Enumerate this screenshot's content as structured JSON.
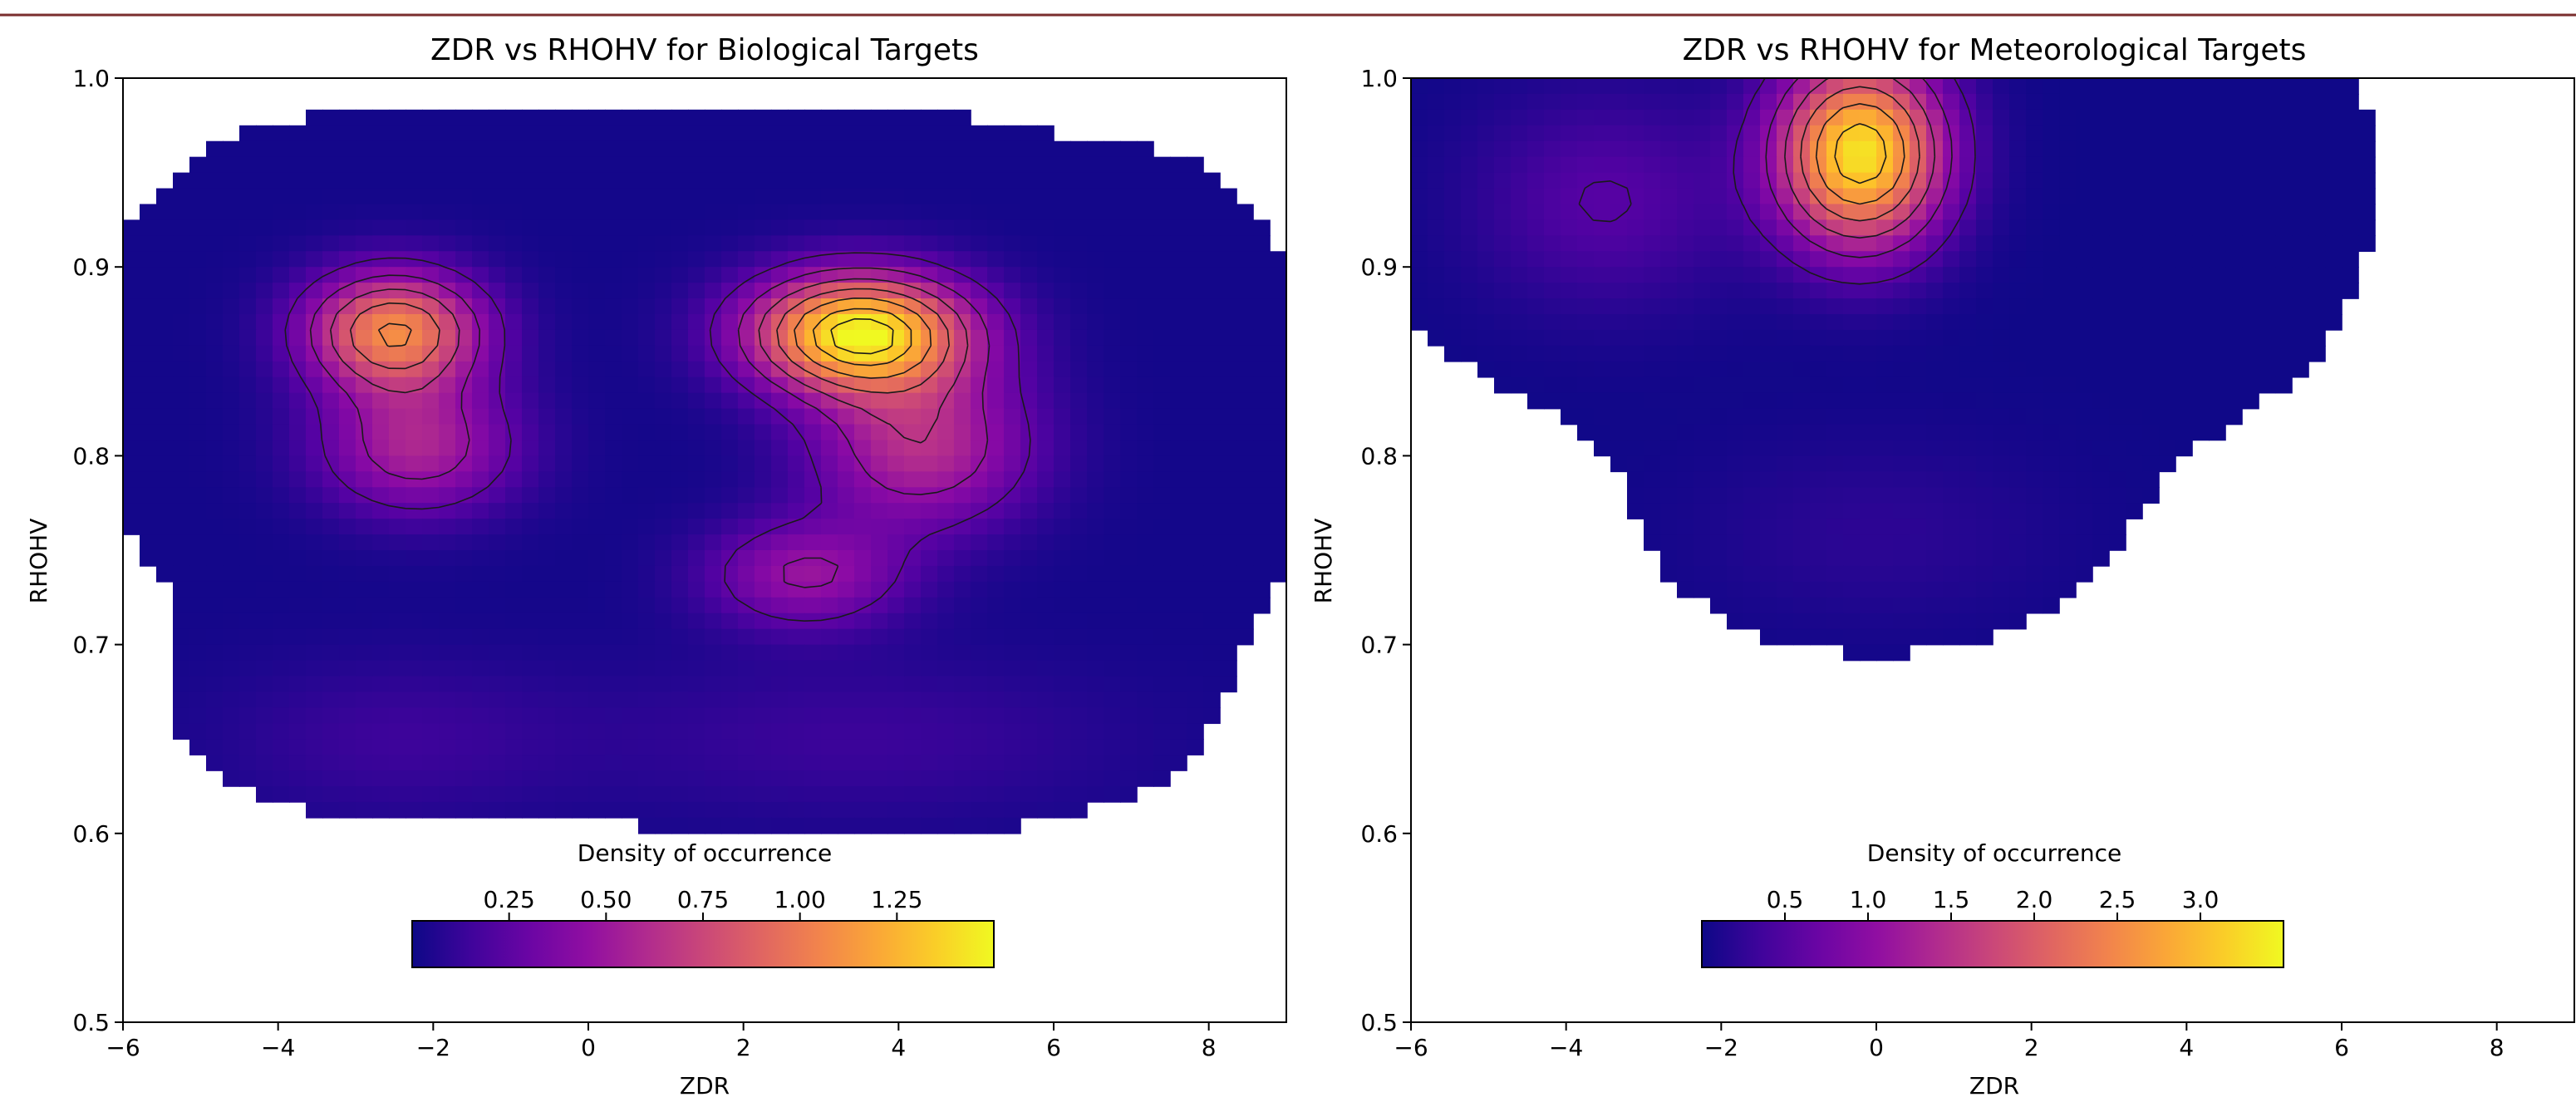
{
  "chart_data": [
    {
      "type": "kde-contour",
      "title": "ZDR vs RHOHV for Biological Targets",
      "xlabel": "ZDR",
      "ylabel": "RHOHV",
      "xlim": [
        -6,
        9
      ],
      "ylim": [
        0.5,
        1.0
      ],
      "xticks": [
        -6,
        -4,
        -2,
        0,
        2,
        4,
        6,
        8
      ],
      "yticks": [
        0.5,
        0.6,
        0.7,
        0.8,
        0.9,
        1.0
      ],
      "colormap": "plasma",
      "density_peaks": [
        {
          "zdr": 3.5,
          "rhohv": 0.865,
          "density": 1.45
        },
        {
          "zdr": -2.5,
          "rhohv": 0.866,
          "density": 1.05
        },
        {
          "zdr": -2.2,
          "rhohv": 0.805,
          "density": 0.55
        },
        {
          "zdr": 4.3,
          "rhohv": 0.805,
          "density": 0.6
        },
        {
          "zdr": 2.8,
          "rhohv": 0.737,
          "density": 0.45
        },
        {
          "zdr": -2.5,
          "rhohv": 0.65,
          "density": 0.12
        },
        {
          "zdr": 3.5,
          "rhohv": 0.65,
          "density": 0.12
        }
      ],
      "colorbar": {
        "label": "Density of occurrence",
        "ticks": [
          0.25,
          0.5,
          0.75,
          1.0,
          1.25
        ],
        "tick_labels": [
          "0.25",
          "0.50",
          "0.75",
          "1.00",
          "1.25"
        ],
        "range": [
          0.0,
          1.5
        ]
      }
    },
    {
      "type": "kde-contour",
      "title": "ZDR vs RHOHV for Meteorological Targets",
      "xlabel": "ZDR",
      "ylabel": "RHOHV",
      "xlim": [
        -6,
        9
      ],
      "ylim": [
        0.5,
        1.0
      ],
      "xticks": [
        -6,
        -4,
        -2,
        0,
        2,
        4,
        6,
        8
      ],
      "yticks": [
        0.5,
        0.6,
        0.7,
        0.8,
        0.9,
        1.0
      ],
      "colormap": "plasma",
      "density_peaks": [
        {
          "zdr": -0.2,
          "rhohv": 0.96,
          "density": 3.3
        },
        {
          "zdr": -3.5,
          "rhohv": 0.935,
          "density": 0.5
        },
        {
          "zdr": 0.0,
          "rhohv": 0.76,
          "density": 0.2
        }
      ],
      "colorbar": {
        "label": "Density of occurrence",
        "ticks": [
          0.5,
          1.0,
          1.5,
          2.0,
          2.5,
          3.0
        ],
        "tick_labels": [
          "0.5",
          "1.0",
          "1.5",
          "2.0",
          "2.5",
          "3.0"
        ],
        "range": [
          0.0,
          3.5
        ]
      }
    }
  ],
  "colors": {
    "top_rule": "#7a2e2e",
    "frame": "#000000"
  }
}
